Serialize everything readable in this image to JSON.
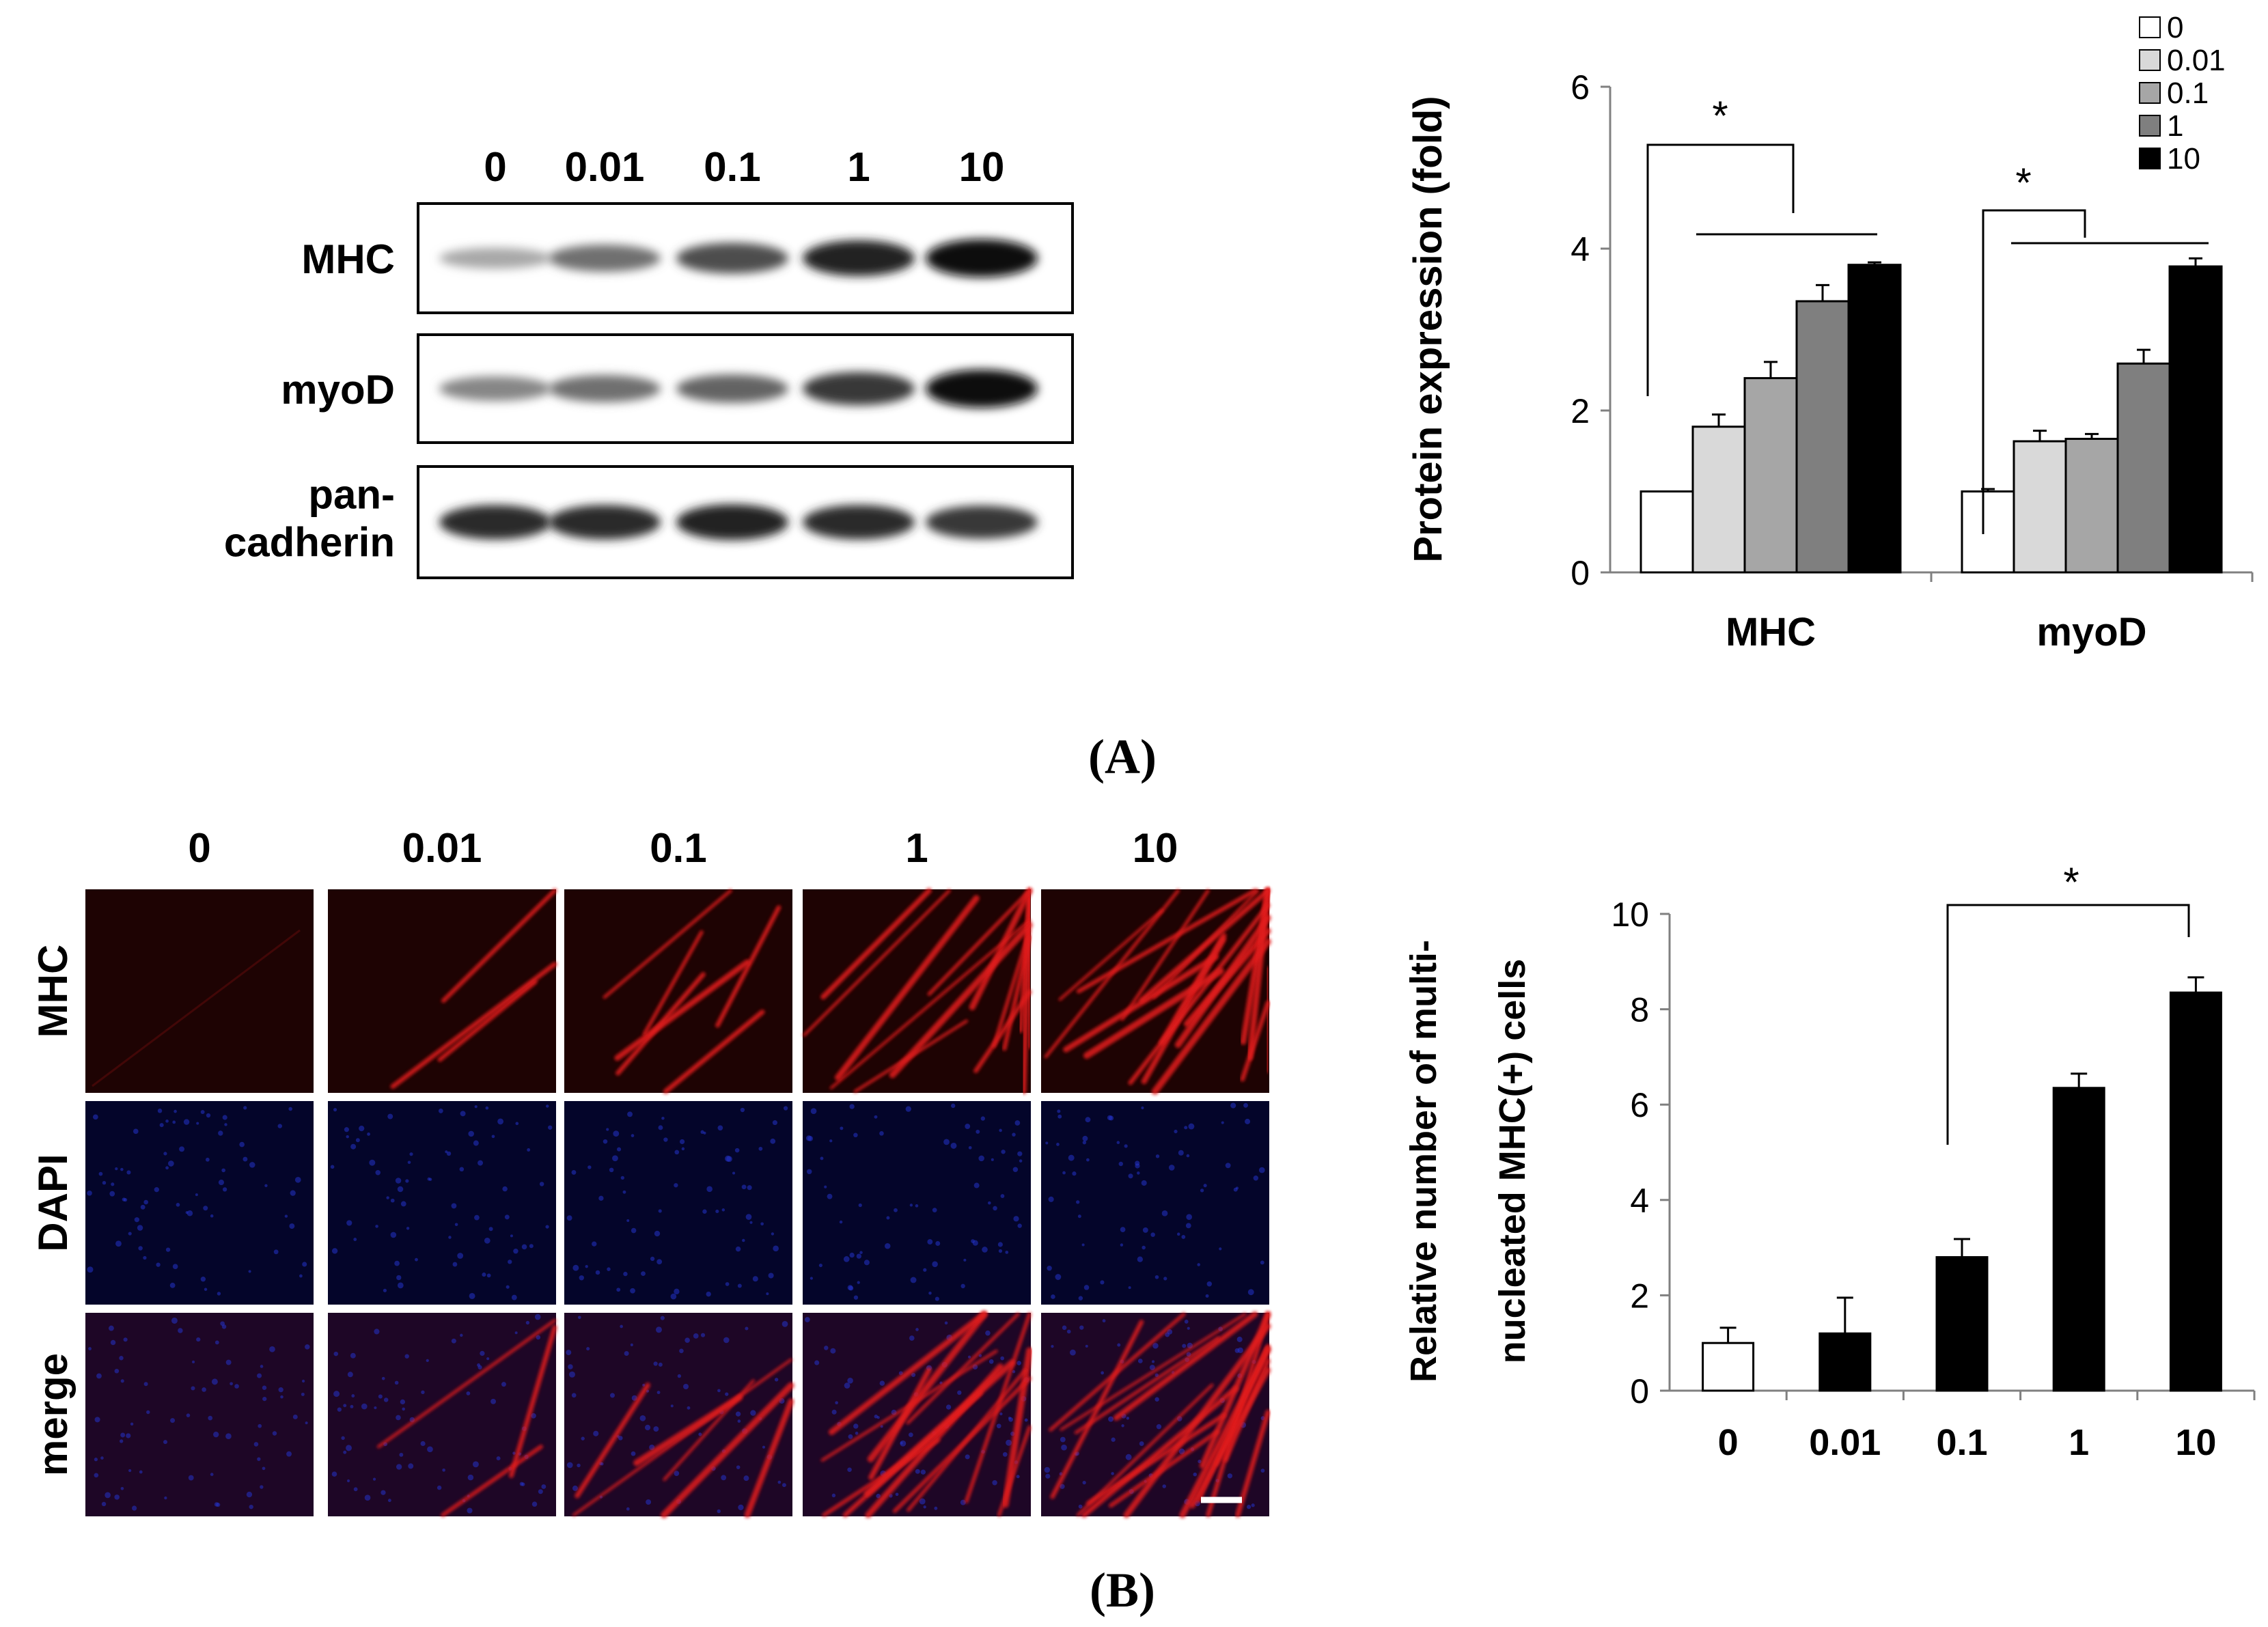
{
  "panel_a_label": "(A)",
  "panel_b_label": "(B)",
  "blot": {
    "lane_labels": [
      "0",
      "0.01",
      "0.1",
      "1",
      "10"
    ],
    "rows": [
      {
        "label_lines": [
          "MHC"
        ],
        "intensity": [
          0.3,
          0.55,
          0.7,
          0.9,
          1.0
        ]
      },
      {
        "label_lines": [
          "myoD"
        ],
        "intensity": [
          0.45,
          0.55,
          0.6,
          0.8,
          1.0
        ]
      },
      {
        "label_lines": [
          "pan-",
          "cadherin"
        ],
        "intensity": [
          0.85,
          0.85,
          0.9,
          0.85,
          0.8
        ]
      }
    ]
  },
  "micro": {
    "col_labels": [
      "0",
      "0.01",
      "0.1",
      "1",
      "10"
    ],
    "row_labels": [
      "MHC",
      "DAPI",
      "merge"
    ],
    "red_fibers": [
      0,
      3,
      6,
      14,
      18
    ]
  },
  "colors": {
    "bar_outline": "#000000",
    "series": [
      "#ffffff",
      "#d9d9d9",
      "#a6a6a6",
      "#7f7f7f",
      "#000000"
    ],
    "red": "#e21a1a",
    "blue": "#2433c8"
  },
  "chart_data": [
    {
      "type": "bar",
      "ylabel": "Protein expression (fold)",
      "xlabel": "",
      "categories": [
        "MHC",
        "myoD"
      ],
      "ylim": [
        0,
        6
      ],
      "yticks": [
        "0",
        "2",
        "4",
        "6"
      ],
      "legend_position": "top-right",
      "series": [
        {
          "name": "0",
          "values": [
            1.0,
            1.0
          ],
          "errors": [
            0.0,
            0.03
          ]
        },
        {
          "name": "0.01",
          "values": [
            1.8,
            1.62
          ],
          "errors": [
            0.15,
            0.13
          ]
        },
        {
          "name": "0.1",
          "values": [
            2.4,
            1.65
          ],
          "errors": [
            0.2,
            0.06
          ]
        },
        {
          "name": "1",
          "values": [
            3.35,
            2.58
          ],
          "errors": [
            0.2,
            0.17
          ]
        },
        {
          "name": "10",
          "values": [
            3.8,
            3.78
          ],
          "errors": [
            0.03,
            0.1
          ]
        }
      ],
      "annotations": [
        "*",
        "*"
      ]
    },
    {
      "type": "bar",
      "ylabel_lines": [
        "Relative number of multi-",
        "nucleated MHC(+) cells"
      ],
      "xlabel": "",
      "categories": [
        "0",
        "0.01",
        "0.1",
        "1",
        "10"
      ],
      "values": [
        1.0,
        1.2,
        2.8,
        6.35,
        8.35
      ],
      "errors": [
        0.32,
        0.75,
        0.38,
        0.3,
        0.32
      ],
      "bar_fill": [
        "#ffffff",
        "#000000",
        "#000000",
        "#000000",
        "#000000"
      ],
      "ylim": [
        0,
        10
      ],
      "yticks": [
        "0",
        "2",
        "4",
        "6",
        "8",
        "10"
      ],
      "annotations": [
        "*"
      ]
    }
  ]
}
